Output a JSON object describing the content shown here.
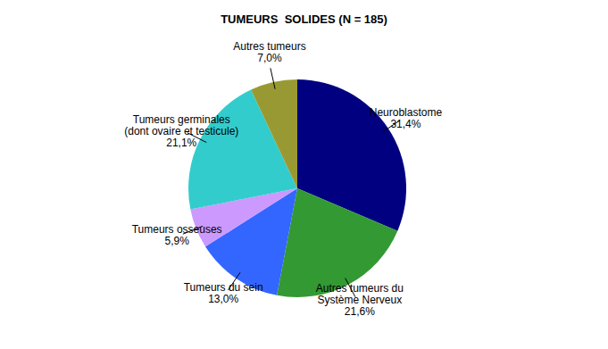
{
  "chart_data": {
    "type": "pie",
    "title": "TUMEURS  SOLIDES (N = 185)",
    "categories": [
      "Neuroblastome",
      "Autres tumeurs du\nSystème Nerveux",
      "Tumeurs du sein",
      "Tumeurs osseuses",
      "Tumeurs germinales\n(dont ovaire et testicule)",
      "Autres tumeurs"
    ],
    "values": [
      31.4,
      21.6,
      13.0,
      5.9,
      21.1,
      7.0
    ],
    "value_labels": [
      "31,4%",
      "21,6%",
      "13,0%",
      "5,9%",
      "21,1%",
      "7,0%"
    ],
    "colors": [
      "#000080",
      "#339933",
      "#3366ff",
      "#cc99ff",
      "#33cccc",
      "#999933"
    ],
    "data_labels": true
  }
}
